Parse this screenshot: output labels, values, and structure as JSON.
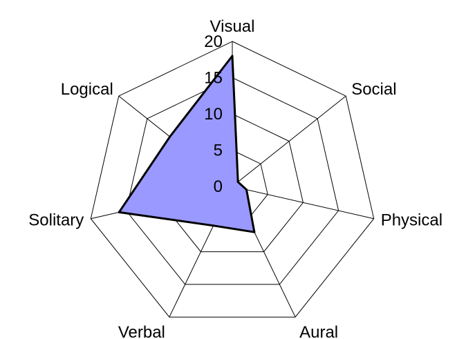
{
  "chart_data": {
    "type": "radar",
    "categories": [
      "Visual",
      "Social",
      "Physical",
      "Aural",
      "Verbal",
      "Solitary",
      "Logical"
    ],
    "series": [
      {
        "values": [
          18,
          1,
          2,
          7,
          6,
          16,
          11
        ]
      }
    ],
    "rlim": [
      0,
      20
    ],
    "ticks": [
      "0",
      "5",
      "10",
      "15",
      "20"
    ],
    "tick_values": [
      0,
      5,
      10,
      15,
      20
    ],
    "grid": true,
    "legend": "none",
    "colors": {
      "fill": "#9999ff",
      "stroke": "#000000"
    }
  }
}
